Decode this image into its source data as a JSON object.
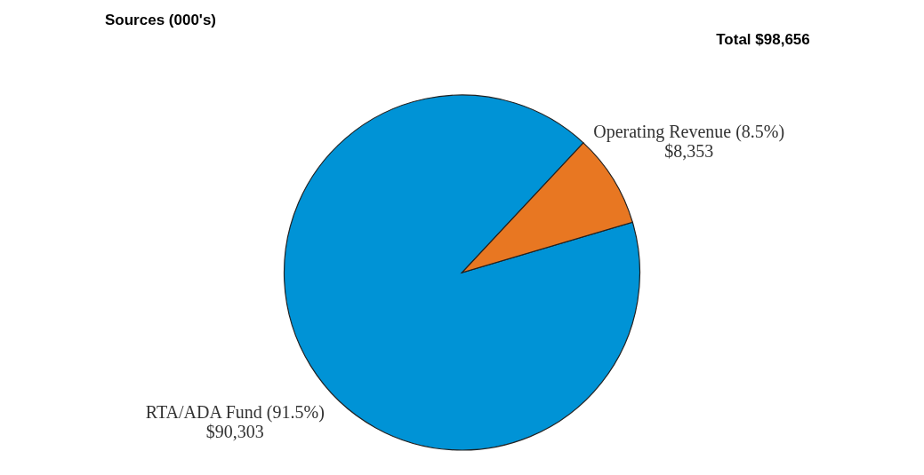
{
  "chart_data": {
    "type": "pie",
    "title": "Sources (000's)",
    "annotations": [
      "Total $98,656"
    ],
    "categories": [
      "RTA/ADA Fund (91.5%)",
      "Operating Revenue (8.5%)"
    ],
    "values": [
      90303,
      8353
    ],
    "value_labels": [
      "$90,303",
      "$8,353"
    ],
    "colors": [
      "#0093d6",
      "#e87722"
    ],
    "legend": false
  }
}
